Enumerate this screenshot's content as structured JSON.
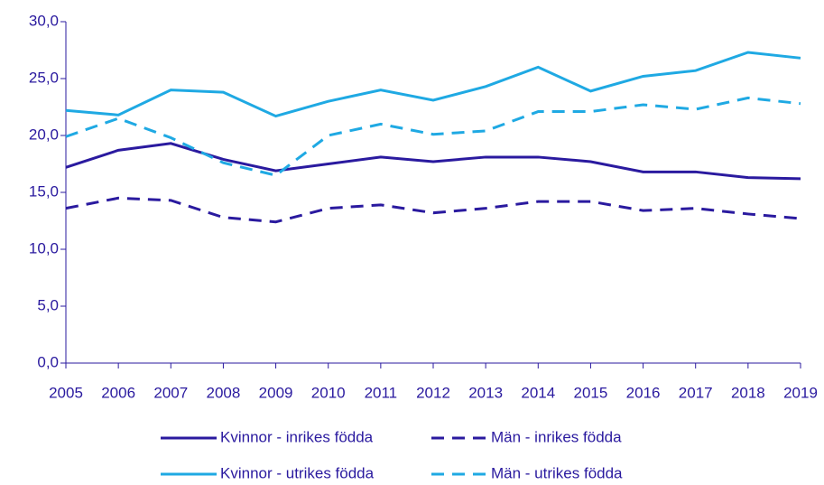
{
  "chart_data": {
    "type": "line",
    "categories": [
      "2005",
      "2006",
      "2007",
      "2008",
      "2009",
      "2010",
      "2011",
      "2012",
      "2013",
      "2014",
      "2015",
      "2016",
      "2017",
      "2018",
      "2019"
    ],
    "series": [
      {
        "name": "Kvinnor - inrikes födda",
        "color": "#2a1a9f",
        "dash": false,
        "values": [
          17.2,
          18.7,
          19.3,
          17.9,
          16.9,
          17.5,
          18.1,
          17.7,
          18.1,
          18.1,
          17.7,
          16.8,
          16.8,
          16.3,
          16.2
        ]
      },
      {
        "name": "Män - inrikes födda",
        "color": "#2a1a9f",
        "dash": true,
        "values": [
          13.6,
          14.5,
          14.3,
          12.8,
          12.4,
          13.6,
          13.9,
          13.2,
          13.6,
          14.2,
          14.2,
          13.4,
          13.6,
          13.1,
          12.7
        ]
      },
      {
        "name": "Kvinnor - utrikes födda",
        "color": "#1fa9e3",
        "dash": false,
        "values": [
          22.2,
          21.8,
          24.0,
          23.8,
          21.7,
          23.0,
          24.0,
          23.1,
          24.3,
          26.0,
          23.9,
          25.2,
          25.7,
          27.3,
          26.8
        ]
      },
      {
        "name": "Män - utrikes födda",
        "color": "#1fa9e3",
        "dash": true,
        "values": [
          19.9,
          21.5,
          19.8,
          17.6,
          16.5,
          20.0,
          21.0,
          20.1,
          20.4,
          22.1,
          22.1,
          22.7,
          22.3,
          23.3,
          22.8
        ]
      }
    ],
    "ylim": [
      0,
      30
    ],
    "yticks": [
      {
        "value": 0,
        "label": "0,0"
      },
      {
        "value": 5,
        "label": "5,0"
      },
      {
        "value": 10,
        "label": "10,0"
      },
      {
        "value": 15,
        "label": "15,0"
      },
      {
        "value": 20,
        "label": "20,0"
      },
      {
        "value": 25,
        "label": "25,0"
      },
      {
        "value": 30,
        "label": "30,0"
      }
    ],
    "grid": false
  }
}
